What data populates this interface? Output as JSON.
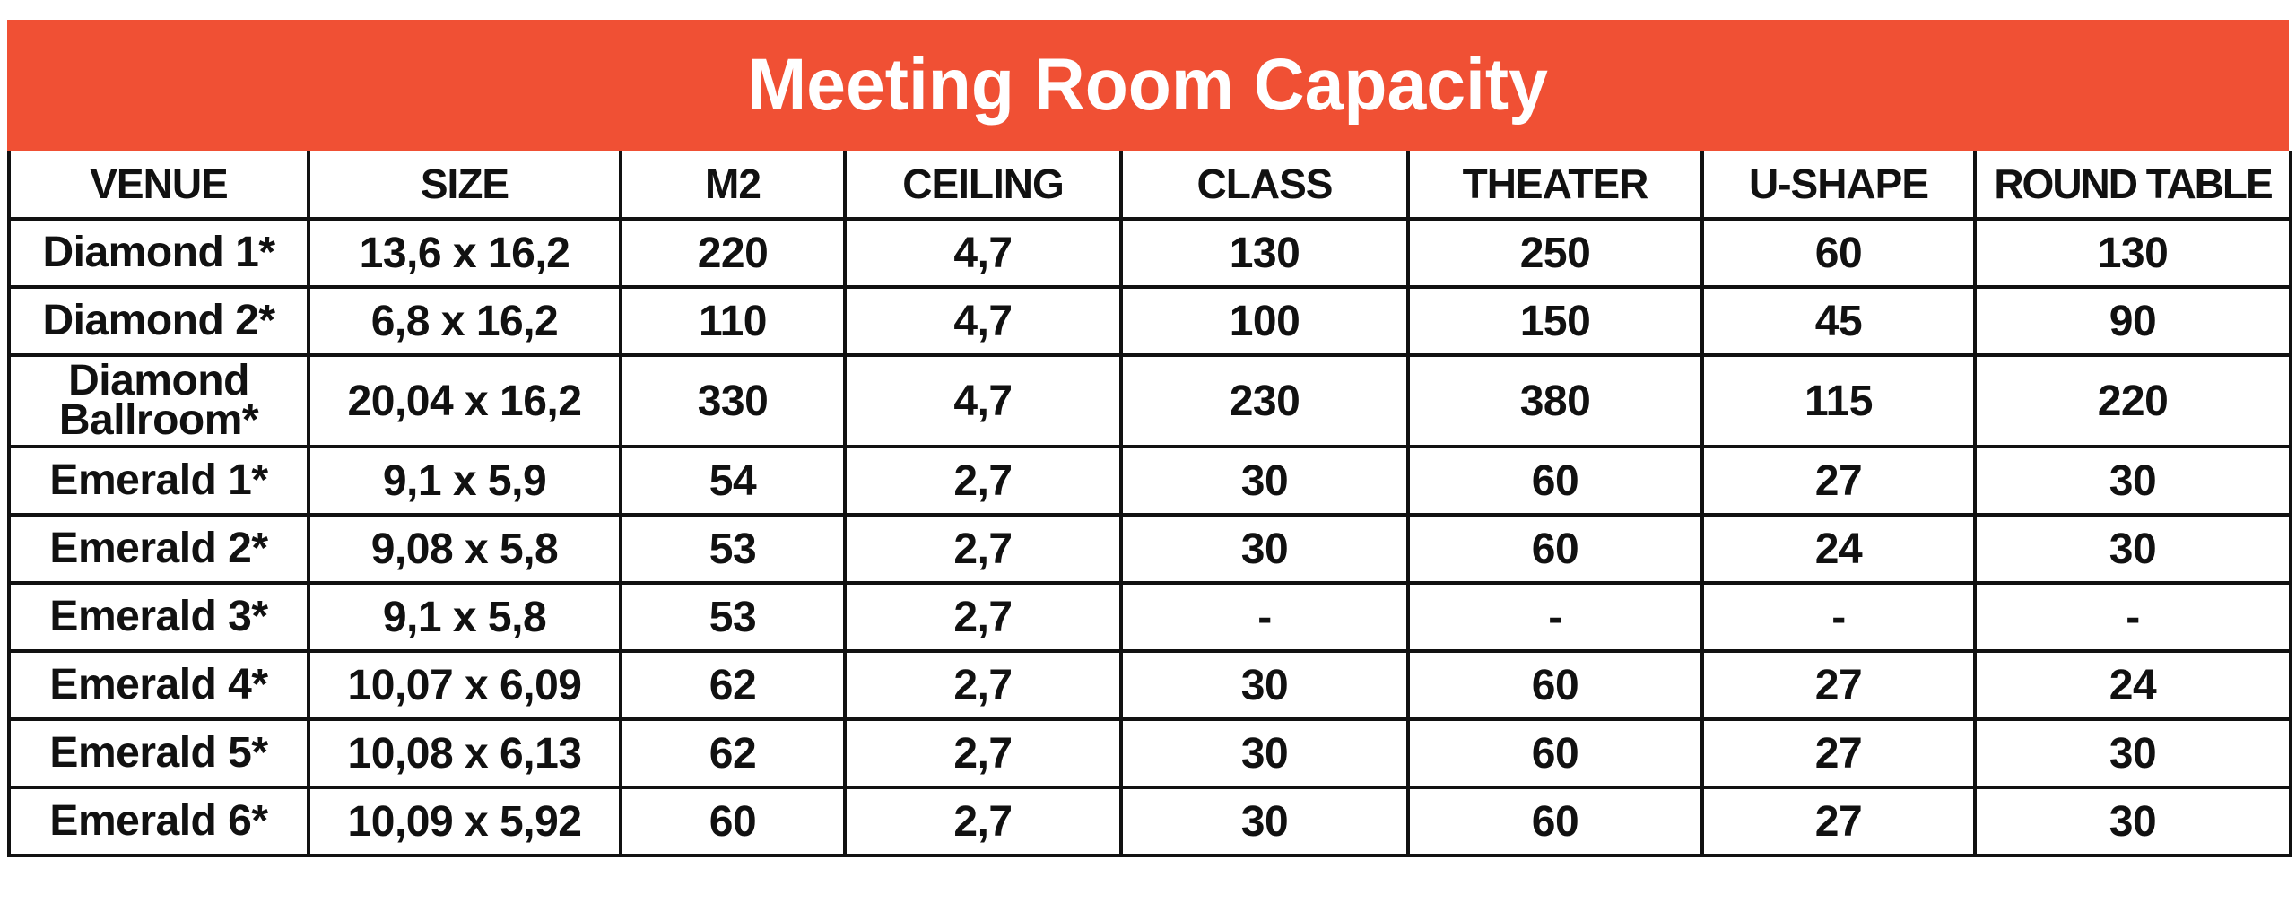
{
  "title": "Meeting Room Capacity",
  "colors": {
    "title_background": "#f05034",
    "title_text": "#ffffff",
    "grid_lines": "#111111",
    "cell_text": "#111111"
  },
  "columns": [
    "VENUE",
    "SIZE",
    "M2",
    "CEILING",
    "CLASS",
    "THEATER",
    "U-SHAPE",
    "ROUND TABLE"
  ],
  "rows": [
    [
      "Diamond 1*",
      "13,6 x 16,2",
      "220",
      "4,7",
      "130",
      "250",
      "60",
      "130"
    ],
    [
      "Diamond 2*",
      "6,8 x 16,2",
      "110",
      "4,7",
      "100",
      "150",
      "45",
      "90"
    ],
    [
      "Diamond Ballroom*",
      "20,04 x 16,2",
      "330",
      "4,7",
      "230",
      "380",
      "115",
      "220"
    ],
    [
      "Emerald 1*",
      "9,1 x 5,9",
      "54",
      "2,7",
      "30",
      "60",
      "27",
      "30"
    ],
    [
      "Emerald 2*",
      "9,08 x 5,8",
      "53",
      "2,7",
      "30",
      "60",
      "24",
      "30"
    ],
    [
      "Emerald 3*",
      "9,1 x 5,8",
      "53",
      "2,7",
      "-",
      "-",
      "-",
      "-"
    ],
    [
      "Emerald 4*",
      "10,07 x 6,09",
      "62",
      "2,7",
      "30",
      "60",
      "27",
      "24"
    ],
    [
      "Emerald 5*",
      "10,08 x 6,13",
      "62",
      "2,7",
      "30",
      "60",
      "27",
      "30"
    ],
    [
      "Emerald 6*",
      "10,09 x 5,92",
      "60",
      "2,7",
      "30",
      "60",
      "27",
      "30"
    ]
  ]
}
